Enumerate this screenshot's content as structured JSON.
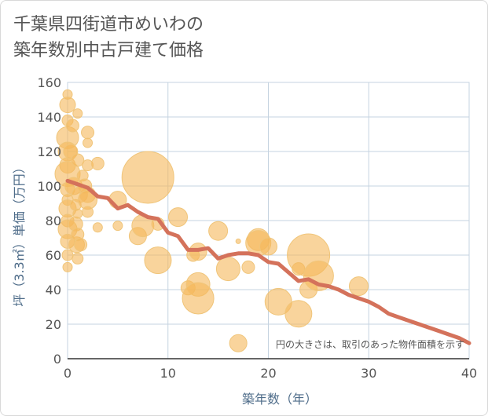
{
  "chart_data": {
    "type": "scatter",
    "title_lines": [
      "千葉県四街道市めいわの",
      "築年数別中古戸建て価格"
    ],
    "xlabel": "築年数（年）",
    "ylabel": "坪（3.3㎡）単価（万円）",
    "xlim": [
      0,
      40
    ],
    "ylim": [
      0,
      160
    ],
    "x_ticks": [
      "0",
      "10",
      "20",
      "30",
      "40"
    ],
    "y_ticks": [
      "0",
      "20",
      "40",
      "60",
      "80",
      "100",
      "120",
      "140",
      "160"
    ],
    "grid": true,
    "note": "円の大きさは、取引のあった物件面積を示す",
    "colors": {
      "bubble_fill": "#f5b85a",
      "bubble_edge": "#f0c57a",
      "trend": "#d4725b",
      "grid": "#c5d3e0",
      "axis": "#333333"
    },
    "bubbles": [
      {
        "x": 0,
        "y": 153,
        "s": 6
      },
      {
        "x": 0,
        "y": 147,
        "s": 10
      },
      {
        "x": 0,
        "y": 138,
        "s": 7
      },
      {
        "x": 0,
        "y": 128,
        "s": 14
      },
      {
        "x": 0,
        "y": 120,
        "s": 12
      },
      {
        "x": 0,
        "y": 112,
        "s": 10
      },
      {
        "x": 0,
        "y": 107,
        "s": 16
      },
      {
        "x": 0,
        "y": 98,
        "s": 9
      },
      {
        "x": 0,
        "y": 92,
        "s": 7
      },
      {
        "x": 0,
        "y": 87,
        "s": 11
      },
      {
        "x": 0,
        "y": 80,
        "s": 8
      },
      {
        "x": 0,
        "y": 75,
        "s": 12
      },
      {
        "x": 0,
        "y": 68,
        "s": 9
      },
      {
        "x": 0,
        "y": 60,
        "s": 7
      },
      {
        "x": 0,
        "y": 53,
        "s": 6
      },
      {
        "x": 0.3,
        "y": 120,
        "s": 9
      },
      {
        "x": 0.5,
        "y": 135,
        "s": 8
      },
      {
        "x": 0.6,
        "y": 100,
        "s": 11
      },
      {
        "x": 0.8,
        "y": 89,
        "s": 7
      },
      {
        "x": 0.8,
        "y": 78,
        "s": 9
      },
      {
        "x": 0.9,
        "y": 66,
        "s": 10
      },
      {
        "x": 1,
        "y": 142,
        "s": 6
      },
      {
        "x": 1,
        "y": 115,
        "s": 8
      },
      {
        "x": 1,
        "y": 84,
        "s": 6
      },
      {
        "x": 1,
        "y": 72,
        "s": 8
      },
      {
        "x": 1,
        "y": 58,
        "s": 7
      },
      {
        "x": 1.2,
        "y": 95,
        "s": 10
      },
      {
        "x": 1.3,
        "y": 66,
        "s": 8
      },
      {
        "x": 1.5,
        "y": 106,
        "s": 7
      },
      {
        "x": 1.7,
        "y": 100,
        "s": 9
      },
      {
        "x": 2,
        "y": 131,
        "s": 8
      },
      {
        "x": 2,
        "y": 125,
        "s": 6
      },
      {
        "x": 2,
        "y": 112,
        "s": 7
      },
      {
        "x": 2,
        "y": 95,
        "s": 10
      },
      {
        "x": 2,
        "y": 92,
        "s": 12
      },
      {
        "x": 2,
        "y": 85,
        "s": 7
      },
      {
        "x": 3,
        "y": 113,
        "s": 8
      },
      {
        "x": 3,
        "y": 76,
        "s": 6
      },
      {
        "x": 5,
        "y": 92,
        "s": 11
      },
      {
        "x": 5,
        "y": 77,
        "s": 6
      },
      {
        "x": 7,
        "y": 71,
        "s": 11
      },
      {
        "x": 7.5,
        "y": 77,
        "s": 14
      },
      {
        "x": 8,
        "y": 105,
        "s": 33
      },
      {
        "x": 9,
        "y": 57,
        "s": 17
      },
      {
        "x": 9,
        "y": 78,
        "s": 8
      },
      {
        "x": 11,
        "y": 82,
        "s": 12
      },
      {
        "x": 12,
        "y": 41,
        "s": 9
      },
      {
        "x": 12.5,
        "y": 60,
        "s": 8
      },
      {
        "x": 13,
        "y": 62,
        "s": 11
      },
      {
        "x": 13,
        "y": 43,
        "s": 15
      },
      {
        "x": 13,
        "y": 35,
        "s": 20
      },
      {
        "x": 15,
        "y": 74,
        "s": 12
      },
      {
        "x": 16,
        "y": 52,
        "s": 15
      },
      {
        "x": 17,
        "y": 68,
        "s": 3
      },
      {
        "x": 17,
        "y": 9,
        "s": 11
      },
      {
        "x": 18,
        "y": 53,
        "s": 8
      },
      {
        "x": 19,
        "y": 69,
        "s": 14
      },
      {
        "x": 19,
        "y": 67,
        "s": 16
      },
      {
        "x": 20,
        "y": 65,
        "s": 11
      },
      {
        "x": 21,
        "y": 33,
        "s": 17
      },
      {
        "x": 23,
        "y": 26,
        "s": 17
      },
      {
        "x": 23,
        "y": 52,
        "s": 8
      },
      {
        "x": 24,
        "y": 60,
        "s": 27
      },
      {
        "x": 24,
        "y": 40,
        "s": 11
      },
      {
        "x": 25,
        "y": 48,
        "s": 19
      },
      {
        "x": 29,
        "y": 42,
        "s": 12
      }
    ],
    "trend": {
      "x": [
        0,
        1,
        2,
        3,
        4,
        5,
        6,
        7,
        8,
        9,
        10,
        11,
        12,
        13,
        14,
        15,
        16,
        17,
        18,
        19,
        20,
        21,
        22,
        23,
        24,
        25,
        26,
        27,
        28,
        29,
        30,
        31,
        32,
        33,
        34,
        35,
        36,
        37,
        38,
        39,
        40
      ],
      "y": [
        103,
        101,
        99,
        94,
        93,
        87,
        89,
        85,
        82,
        81,
        73,
        71,
        63,
        63,
        64,
        58,
        60,
        61,
        61,
        60,
        56,
        55,
        50,
        45,
        46,
        43,
        42,
        40,
        37,
        35,
        33,
        30,
        26,
        24,
        22,
        20,
        18,
        16,
        14,
        12,
        9
      ]
    }
  }
}
